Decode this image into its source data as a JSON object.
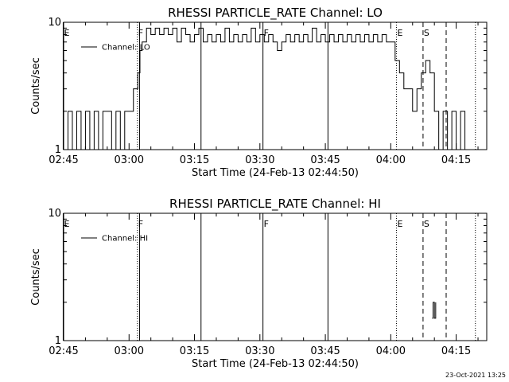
{
  "timestamp": "23-Oct-2021 13:25",
  "chart_data": [
    {
      "type": "line",
      "title": "RHESSI PARTICLE_RATE Channel: LO",
      "xlabel": "Start Time (24-Feb-13 02:44:50)",
      "ylabel": "Counts/sec",
      "ylog": true,
      "ylim": [
        1,
        10
      ],
      "yticks": [
        {
          "v": 1,
          "label": "1"
        },
        {
          "v": 10,
          "label": "10"
        }
      ],
      "xlim_min": [
        0,
        97
      ],
      "xticks": [
        {
          "m": 0,
          "label": "02:45"
        },
        {
          "m": 15,
          "label": "03:00"
        },
        {
          "m": 30,
          "label": "03:15"
        },
        {
          "m": 45,
          "label": "03:30"
        },
        {
          "m": 60,
          "label": "03:45"
        },
        {
          "m": 75,
          "label": "04:00"
        },
        {
          "m": 90,
          "label": "04:15"
        }
      ],
      "legend": {
        "label": "Channel: LO",
        "position": "top-left"
      },
      "event_markers": [
        {
          "m": -0.1,
          "label": "E",
          "style": "solid"
        },
        {
          "m": 16.9,
          "label": "F",
          "style": "dotted"
        },
        {
          "m": 17.4,
          "label": "",
          "style": "solid"
        },
        {
          "m": 31.5,
          "label": "",
          "style": "solid"
        },
        {
          "m": 45.7,
          "label": "F",
          "style": "solid"
        },
        {
          "m": 60.6,
          "label": "",
          "style": "solid"
        },
        {
          "m": 76.3,
          "label": "E",
          "style": "dotted"
        },
        {
          "m": 82.4,
          "label": "S",
          "style": "dashed"
        },
        {
          "m": 87.7,
          "label": "",
          "style": "dashed"
        },
        {
          "m": 94.4,
          "label": "",
          "style": "dotted"
        }
      ],
      "series": [
        {
          "x": [
            0,
            1,
            2,
            3,
            4,
            5,
            6,
            7,
            8,
            9,
            10,
            11,
            12,
            13,
            14,
            15,
            16,
            17,
            17.5,
            18,
            19,
            20,
            21,
            22,
            23,
            24,
            25,
            26,
            27,
            28,
            29,
            30,
            31,
            32,
            33,
            34,
            35,
            36,
            37,
            38,
            39,
            40,
            41,
            42,
            43,
            44,
            45,
            46,
            47,
            48,
            49,
            50,
            51,
            52,
            53,
            54,
            55,
            56,
            57,
            58,
            59,
            60,
            61,
            62,
            63,
            64,
            65,
            66,
            67,
            68,
            69,
            70,
            71,
            72,
            73,
            74,
            75,
            76,
            77,
            78,
            79,
            80,
            81,
            82,
            83,
            84,
            85,
            86,
            87,
            88,
            89,
            90,
            91,
            92,
            93,
            94
          ],
          "y": [
            1,
            2,
            1,
            2,
            1,
            2,
            1,
            2,
            1,
            2,
            2,
            1,
            2,
            1,
            2,
            2,
            3,
            4,
            6,
            7,
            9,
            8,
            9,
            8,
            9,
            8,
            9,
            7,
            9,
            8,
            7,
            8,
            9,
            7,
            8,
            7,
            8,
            7,
            9,
            7,
            8,
            7,
            8,
            7,
            9,
            7,
            8,
            7,
            8,
            7,
            6,
            7,
            8,
            7,
            8,
            7,
            8,
            7,
            9,
            7,
            8,
            7,
            8,
            7,
            8,
            7,
            8,
            7,
            8,
            7,
            8,
            7,
            8,
            7,
            8,
            7,
            7,
            5,
            4,
            3,
            3,
            2,
            3,
            4,
            5,
            4,
            2,
            1,
            2,
            1,
            2,
            1,
            2,
            1,
            1,
            1
          ]
        }
      ]
    },
    {
      "type": "line",
      "title": "RHESSI PARTICLE_RATE Channel: HI",
      "xlabel": "Start Time (24-Feb-13 02:44:50)",
      "ylabel": "Counts/sec",
      "ylog": true,
      "ylim": [
        1,
        10
      ],
      "yticks": [
        {
          "v": 1,
          "label": "1"
        },
        {
          "v": 10,
          "label": "10"
        }
      ],
      "xlim_min": [
        0,
        97
      ],
      "xticks": [
        {
          "m": 0,
          "label": "02:45"
        },
        {
          "m": 15,
          "label": "03:00"
        },
        {
          "m": 30,
          "label": "03:15"
        },
        {
          "m": 45,
          "label": "03:30"
        },
        {
          "m": 60,
          "label": "03:45"
        },
        {
          "m": 75,
          "label": "04:00"
        },
        {
          "m": 90,
          "label": "04:15"
        }
      ],
      "legend": {
        "label": "Channel: HI",
        "position": "top-left"
      },
      "event_markers": [
        {
          "m": -0.1,
          "label": "E",
          "style": "solid"
        },
        {
          "m": 16.9,
          "label": "F",
          "style": "dotted"
        },
        {
          "m": 17.4,
          "label": "",
          "style": "solid"
        },
        {
          "m": 31.5,
          "label": "",
          "style": "solid"
        },
        {
          "m": 45.7,
          "label": "F",
          "style": "solid"
        },
        {
          "m": 60.6,
          "label": "",
          "style": "solid"
        },
        {
          "m": 76.3,
          "label": "E",
          "style": "dotted"
        },
        {
          "m": 82.4,
          "label": "S",
          "style": "dashed"
        },
        {
          "m": 87.7,
          "label": "",
          "style": "dashed"
        },
        {
          "m": 94.4,
          "label": "",
          "style": "dotted"
        }
      ],
      "series": [
        {
          "x": [
            84.5,
            84.7,
            85.0,
            85.3
          ],
          "y": [
            1.5,
            2,
            1.5,
            2
          ]
        }
      ]
    }
  ]
}
